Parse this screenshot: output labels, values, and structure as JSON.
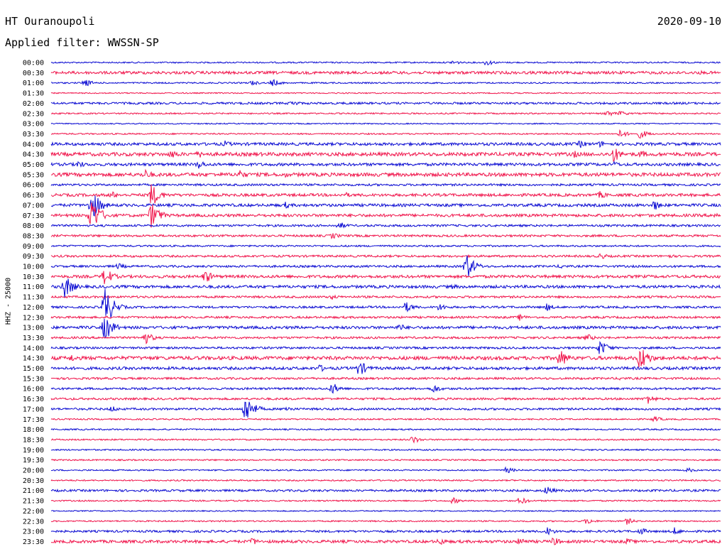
{
  "header": {
    "station": "HT Ouranoupoli",
    "date": "2020-09-10",
    "filter_text": "Applied filter: WWSSN-SP"
  },
  "colors": {
    "blue": "#0a0ad2",
    "red": "#f0144b"
  },
  "chart_data": {
    "type": "line",
    "ylabel": "HHZ - 25000",
    "row_labels": [
      "00:00",
      "00:30",
      "01:00",
      "01:30",
      "02:00",
      "02:30",
      "03:00",
      "03:30",
      "04:00",
      "04:30",
      "05:00",
      "05:30",
      "06:00",
      "06:30",
      "07:00",
      "07:30",
      "08:00",
      "08:30",
      "09:00",
      "09:30",
      "10:00",
      "10:30",
      "11:00",
      "11:30",
      "12:00",
      "12:30",
      "13:00",
      "13:30",
      "14:00",
      "14:30",
      "15:00",
      "15:30",
      "16:00",
      "16:30",
      "17:00",
      "17:30",
      "18:00",
      "18:30",
      "19:00",
      "19:30",
      "20:00",
      "20:30",
      "21:00",
      "21:30",
      "22:00",
      "22:30",
      "23:00",
      "23:30"
    ],
    "row_colors": [
      "blue",
      "red",
      "blue",
      "red",
      "blue",
      "red",
      "blue",
      "red",
      "blue",
      "red",
      "blue",
      "red",
      "blue",
      "red",
      "blue",
      "red",
      "blue",
      "red",
      "blue",
      "red",
      "blue",
      "red",
      "blue",
      "red",
      "blue",
      "red",
      "blue",
      "red",
      "blue",
      "red",
      "blue",
      "red",
      "blue",
      "red",
      "blue",
      "red",
      "blue",
      "red",
      "blue",
      "red",
      "blue",
      "red",
      "blue",
      "red",
      "blue",
      "red",
      "blue",
      "red"
    ],
    "row_noise": [
      1,
      2,
      1,
      0.8,
      1.5,
      1,
      0.8,
      1,
      2,
      2.5,
      2,
      2.5,
      1.5,
      2,
      2,
      2,
      1.5,
      1.5,
      1.2,
      1.5,
      1.5,
      2,
      2,
      1.5,
      1.5,
      1.5,
      2,
      1.5,
      1.5,
      2.5,
      2,
      1.5,
      1.5,
      1.5,
      1.5,
      1,
      1,
      1,
      1,
      1,
      1,
      1,
      1.5,
      1,
      0.8,
      1,
      1.5,
      2
    ],
    "events": [
      {
        "row": 0,
        "x": 0.6,
        "amp": 4
      },
      {
        "row": 0,
        "x": 0.65,
        "amp": 5
      },
      {
        "row": 1,
        "x": 0.97,
        "amp": 3
      },
      {
        "row": 2,
        "x": 0.05,
        "amp": 6
      },
      {
        "row": 2,
        "x": 0.3,
        "amp": 4
      },
      {
        "row": 2,
        "x": 0.33,
        "amp": 6
      },
      {
        "row": 4,
        "x": 0.36,
        "amp": 5
      },
      {
        "row": 5,
        "x": 0.83,
        "amp": 5
      },
      {
        "row": 5,
        "x": 0.85,
        "amp": 4
      },
      {
        "row": 7,
        "x": 0.85,
        "amp": 6
      },
      {
        "row": 7,
        "x": 0.88,
        "amp": 7
      },
      {
        "row": 8,
        "x": 0.26,
        "amp": 5
      },
      {
        "row": 8,
        "x": 0.79,
        "amp": 6
      },
      {
        "row": 8,
        "x": 0.82,
        "amp": 5
      },
      {
        "row": 9,
        "x": 0.18,
        "amp": 7
      },
      {
        "row": 9,
        "x": 0.22,
        "amp": 6
      },
      {
        "row": 9,
        "x": 0.78,
        "amp": 6
      },
      {
        "row": 9,
        "x": 0.84,
        "amp": 12
      },
      {
        "row": 9,
        "x": 0.88,
        "amp": 6
      },
      {
        "row": 10,
        "x": 0.04,
        "amp": 6
      },
      {
        "row": 10,
        "x": 0.22,
        "amp": 7
      },
      {
        "row": 10,
        "x": 0.84,
        "amp": 5
      },
      {
        "row": 11,
        "x": 0.14,
        "amp": 8
      },
      {
        "row": 11,
        "x": 0.28,
        "amp": 8
      },
      {
        "row": 11,
        "x": 0.35,
        "amp": 4
      },
      {
        "row": 13,
        "x": 0.09,
        "amp": 6
      },
      {
        "row": 13,
        "x": 0.15,
        "amp": 18
      },
      {
        "row": 13,
        "x": 0.44,
        "amp": 4
      },
      {
        "row": 13,
        "x": 0.82,
        "amp": 6
      },
      {
        "row": 14,
        "x": 0.06,
        "amp": 24
      },
      {
        "row": 14,
        "x": 0.35,
        "amp": 5
      },
      {
        "row": 14,
        "x": 0.9,
        "amp": 8
      },
      {
        "row": 15,
        "x": 0.06,
        "amp": 28
      },
      {
        "row": 15,
        "x": 0.15,
        "amp": 20
      },
      {
        "row": 15,
        "x": 0.99,
        "amp": 5
      },
      {
        "row": 16,
        "x": 0.43,
        "amp": 6
      },
      {
        "row": 17,
        "x": 0.42,
        "amp": 5
      },
      {
        "row": 19,
        "x": 0.82,
        "amp": 5
      },
      {
        "row": 19,
        "x": 0.92,
        "amp": 4
      },
      {
        "row": 20,
        "x": 0.1,
        "amp": 5
      },
      {
        "row": 20,
        "x": 0.62,
        "amp": 20
      },
      {
        "row": 20,
        "x": 0.76,
        "amp": 4
      },
      {
        "row": 21,
        "x": 0.08,
        "amp": 14
      },
      {
        "row": 21,
        "x": 0.23,
        "amp": 10
      },
      {
        "row": 22,
        "x": 0.02,
        "amp": 18
      },
      {
        "row": 22,
        "x": 0.6,
        "amp": 4
      },
      {
        "row": 23,
        "x": 0.42,
        "amp": 4
      },
      {
        "row": 24,
        "x": 0.08,
        "amp": 30
      },
      {
        "row": 24,
        "x": 0.53,
        "amp": 8
      },
      {
        "row": 24,
        "x": 0.58,
        "amp": 6
      },
      {
        "row": 24,
        "x": 0.74,
        "amp": 6
      },
      {
        "row": 25,
        "x": 0.7,
        "amp": 5
      },
      {
        "row": 26,
        "x": 0.08,
        "amp": 20
      },
      {
        "row": 26,
        "x": 0.52,
        "amp": 6
      },
      {
        "row": 27,
        "x": 0.14,
        "amp": 10
      },
      {
        "row": 27,
        "x": 0.8,
        "amp": 6
      },
      {
        "row": 28,
        "x": 0.82,
        "amp": 12
      },
      {
        "row": 29,
        "x": 0.03,
        "amp": 6
      },
      {
        "row": 29,
        "x": 0.76,
        "amp": 14
      },
      {
        "row": 29,
        "x": 0.88,
        "amp": 20
      },
      {
        "row": 30,
        "x": 0.4,
        "amp": 6
      },
      {
        "row": 30,
        "x": 0.46,
        "amp": 12
      },
      {
        "row": 31,
        "x": 0.85,
        "amp": 3
      },
      {
        "row": 32,
        "x": 0.42,
        "amp": 9
      },
      {
        "row": 32,
        "x": 0.57,
        "amp": 7
      },
      {
        "row": 33,
        "x": 0.89,
        "amp": 8
      },
      {
        "row": 34,
        "x": 0.09,
        "amp": 5
      },
      {
        "row": 34,
        "x": 0.29,
        "amp": 22
      },
      {
        "row": 34,
        "x": 0.35,
        "amp": 5
      },
      {
        "row": 35,
        "x": 0.9,
        "amp": 5
      },
      {
        "row": 37,
        "x": 0.54,
        "amp": 6
      },
      {
        "row": 40,
        "x": 0.68,
        "amp": 5
      },
      {
        "row": 40,
        "x": 0.95,
        "amp": 4
      },
      {
        "row": 42,
        "x": 0.74,
        "amp": 7
      },
      {
        "row": 43,
        "x": 0.6,
        "amp": 5
      },
      {
        "row": 43,
        "x": 0.7,
        "amp": 6
      },
      {
        "row": 45,
        "x": 0.8,
        "amp": 5
      },
      {
        "row": 45,
        "x": 0.86,
        "amp": 5
      },
      {
        "row": 46,
        "x": 0.74,
        "amp": 7
      },
      {
        "row": 46,
        "x": 0.88,
        "amp": 6
      },
      {
        "row": 46,
        "x": 0.93,
        "amp": 6
      },
      {
        "row": 47,
        "x": 0.3,
        "amp": 6
      },
      {
        "row": 47,
        "x": 0.58,
        "amp": 6
      },
      {
        "row": 47,
        "x": 0.7,
        "amp": 7
      },
      {
        "row": 47,
        "x": 0.75,
        "amp": 7
      },
      {
        "row": 47,
        "x": 0.86,
        "amp": 5
      }
    ]
  }
}
